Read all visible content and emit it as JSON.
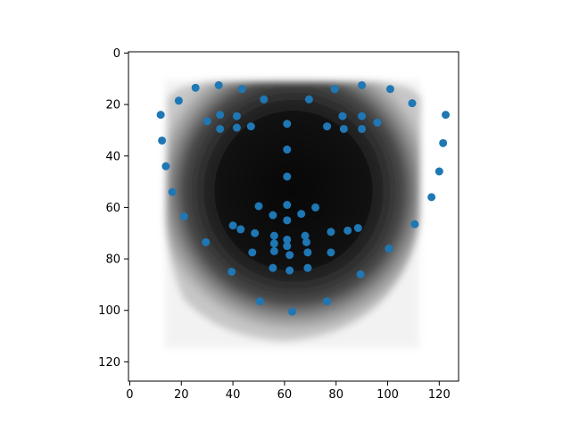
{
  "chart_data": {
    "type": "scatter",
    "title": "",
    "xlabel": "",
    "ylabel": "",
    "xlim": [
      -0.5,
      127.5
    ],
    "ylim": [
      127.5,
      -0.5
    ],
    "y_inverted": true,
    "grid": false,
    "marker_color": "#1f77b4",
    "x_ticks": [
      0,
      20,
      40,
      60,
      80,
      100,
      120
    ],
    "y_ticks": [
      0,
      20,
      40,
      60,
      80,
      100,
      120
    ],
    "x_tick_labels": [
      "0",
      "20",
      "40",
      "60",
      "80",
      "100",
      "120"
    ],
    "y_tick_labels": [
      "0",
      "20",
      "40",
      "60",
      "80",
      "100",
      "120"
    ],
    "background_image": "grayscale mean face silhouette (dark center, white surroundings)",
    "series": [
      {
        "points": [
          [
            12,
            24
          ],
          [
            12.5,
            34
          ],
          [
            14,
            44
          ],
          [
            16.5,
            54
          ],
          [
            21,
            63.5
          ],
          [
            29.5,
            73.5
          ],
          [
            39.5,
            85
          ],
          [
            50.5,
            96.5
          ],
          [
            63,
            100.5
          ],
          [
            76.5,
            96.5
          ],
          [
            89.5,
            86
          ],
          [
            100.5,
            76
          ],
          [
            110.5,
            66.5
          ],
          [
            117,
            56
          ],
          [
            120,
            46
          ],
          [
            121.5,
            35
          ],
          [
            122.5,
            24
          ],
          [
            19,
            18.5
          ],
          [
            25.5,
            13.5
          ],
          [
            34.5,
            12.5
          ],
          [
            43.5,
            14
          ],
          [
            52,
            18
          ],
          [
            69.5,
            18
          ],
          [
            79.5,
            14
          ],
          [
            90,
            12.5
          ],
          [
            101,
            14
          ],
          [
            109.5,
            19.5
          ],
          [
            61,
            27.5
          ],
          [
            61,
            37.5
          ],
          [
            61,
            48
          ],
          [
            61,
            59
          ],
          [
            50,
            59.5
          ],
          [
            55.5,
            63
          ],
          [
            61,
            65
          ],
          [
            66.5,
            62.5
          ],
          [
            72,
            60
          ],
          [
            30,
            26.5
          ],
          [
            35,
            24
          ],
          [
            41.5,
            24.5
          ],
          [
            47,
            28.5
          ],
          [
            41.5,
            29
          ],
          [
            35,
            29.5
          ],
          [
            76.5,
            28.5
          ],
          [
            82.5,
            24.5
          ],
          [
            90,
            24.5
          ],
          [
            96,
            27
          ],
          [
            90,
            29.5
          ],
          [
            83,
            29.5
          ],
          [
            40,
            67
          ],
          [
            43,
            68.5
          ],
          [
            48.5,
            70
          ],
          [
            56,
            71
          ],
          [
            61,
            72.5
          ],
          [
            68,
            71
          ],
          [
            78,
            69.5
          ],
          [
            84.5,
            69
          ],
          [
            88.5,
            68
          ],
          [
            78,
            77.5
          ],
          [
            69,
            83.5
          ],
          [
            62,
            84.5
          ],
          [
            55.5,
            83.5
          ],
          [
            47.5,
            77.5
          ],
          [
            56,
            74
          ],
          [
            61,
            75
          ],
          [
            68.5,
            73.5
          ],
          [
            56,
            77
          ],
          [
            62,
            78.5
          ],
          [
            69,
            77.5
          ]
        ]
      }
    ]
  }
}
